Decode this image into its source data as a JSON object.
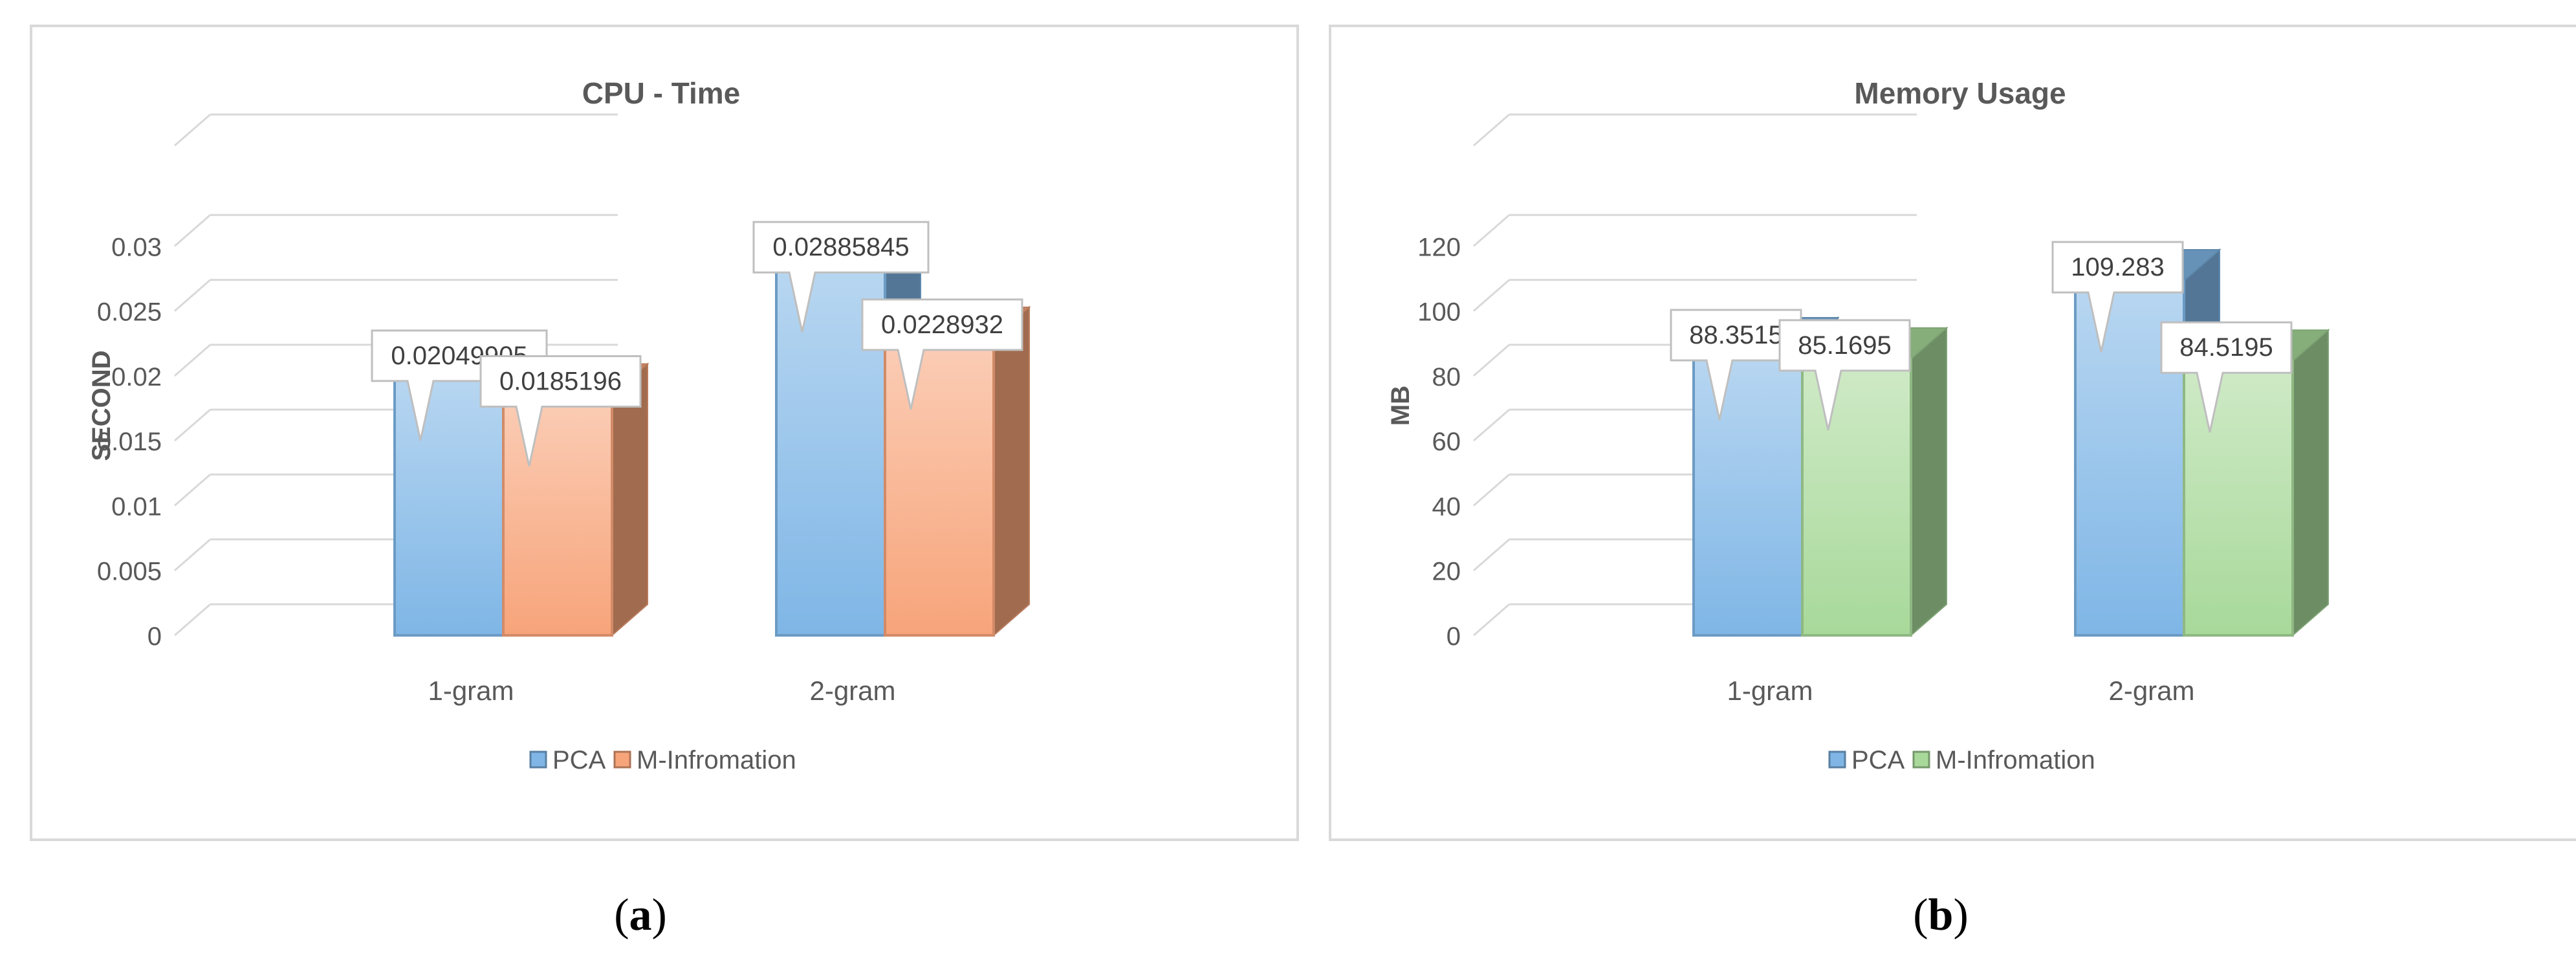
{
  "chart_data": [
    {
      "type": "bar",
      "title": "CPU - Time",
      "xlabel": "",
      "ylabel": "SECOND",
      "categories": [
        "1-gram",
        "2-gram"
      ],
      "yticks": [
        "0",
        "0.005",
        "0.01",
        "0.015",
        "0.02",
        "0.025",
        "0.03"
      ],
      "ylim": [
        0,
        0.035
      ],
      "grid": true,
      "legend_position": "bottom",
      "series": [
        {
          "name": "PCA",
          "values": [
            0.02049905,
            0.02885845
          ],
          "labels": [
            "0.02049905",
            "0.02885845"
          ],
          "color": "#7fb6e6"
        },
        {
          "name": "M-Infromation",
          "values": [
            0.0185196,
            0.0228932
          ],
          "labels": [
            "0.0185196",
            "0.0228932"
          ],
          "color": "#f7a47a"
        }
      ]
    },
    {
      "type": "bar",
      "title": "Memory Usage",
      "xlabel": "",
      "ylabel": "MB",
      "categories": [
        "1-gram",
        "2-gram"
      ],
      "yticks": [
        "0",
        "20",
        "40",
        "60",
        "80",
        "100",
        "120"
      ],
      "ylim": [
        0,
        140
      ],
      "grid": true,
      "legend_position": "bottom",
      "series": [
        {
          "name": "PCA",
          "values": [
            88.3515,
            109.283
          ],
          "labels": [
            "88.3515",
            "109.283"
          ],
          "color": "#7fb6e6"
        },
        {
          "name": "M-Infromation",
          "values": [
            85.1695,
            84.5195
          ],
          "labels": [
            "85.1695",
            "84.5195"
          ],
          "color": "#a8d99a"
        }
      ]
    }
  ],
  "captions": {
    "a": "a",
    "b": "b"
  }
}
